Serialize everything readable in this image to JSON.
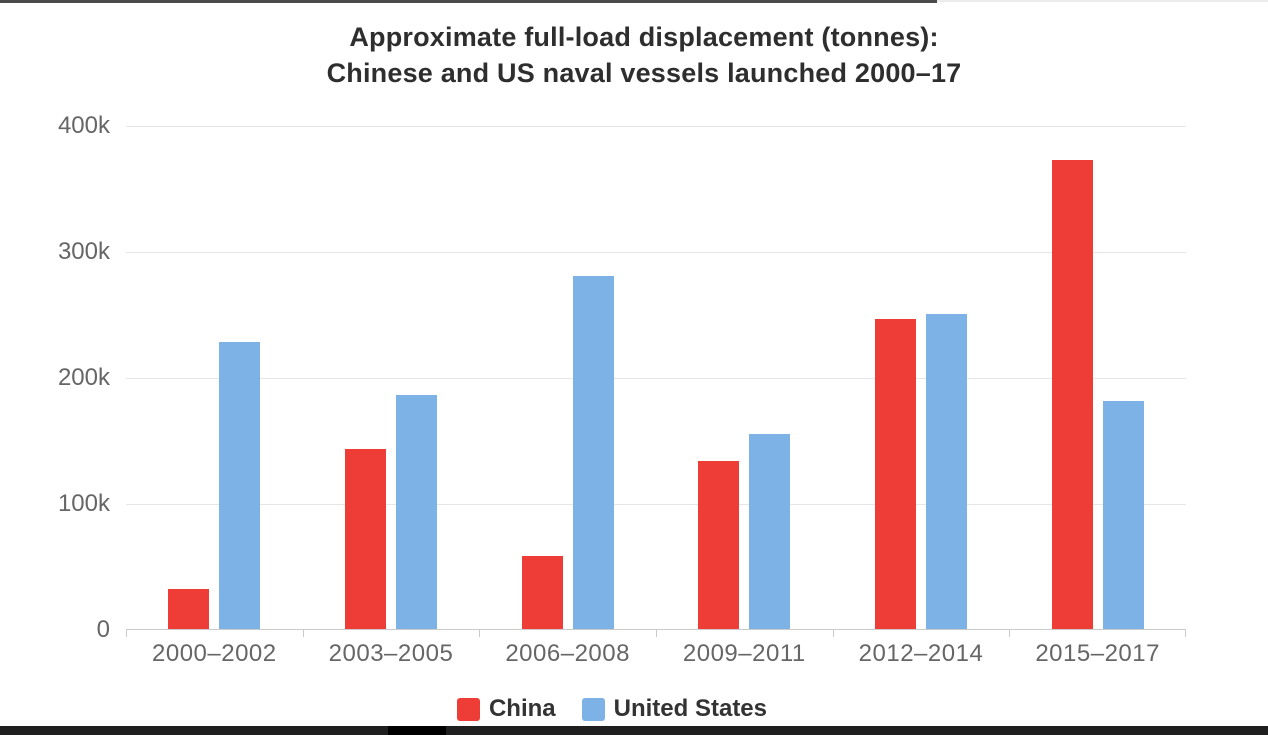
{
  "chart_data": {
    "type": "bar",
    "title_line1": "Approximate full-load displacement (tonnes):",
    "title_line2": "Chinese and US naval vessels launched 2000–17",
    "categories": [
      "2000–2002",
      "2003–2005",
      "2006–2008",
      "2009–2011",
      "2012–2014",
      "2015–2017"
    ],
    "series": [
      {
        "name": "China",
        "color": "#ee3d36",
        "values": [
          32000,
          143000,
          58000,
          133000,
          246000,
          372000
        ]
      },
      {
        "name": "United States",
        "color": "#7cb2e6",
        "values": [
          228000,
          186000,
          280000,
          155000,
          250000,
          181000
        ]
      }
    ],
    "unit": "tonnes",
    "ylim": [
      0,
      400000
    ],
    "yticks": [
      {
        "value": 0,
        "label": "0"
      },
      {
        "value": 100000,
        "label": "100k"
      },
      {
        "value": 200000,
        "label": "200k"
      },
      {
        "value": 300000,
        "label": "300k"
      },
      {
        "value": 400000,
        "label": "400k"
      }
    ],
    "grid": true,
    "legend_position": "bottom"
  },
  "colors": {
    "gridline": "#e6e6e6",
    "axis": "#cbcbcb",
    "axis_text": "#666666",
    "title_text": "#2e2e2e",
    "legend_text": "#333333",
    "top_bar": "#4a4a4a",
    "bottom_bar": "#1f1f1f"
  }
}
